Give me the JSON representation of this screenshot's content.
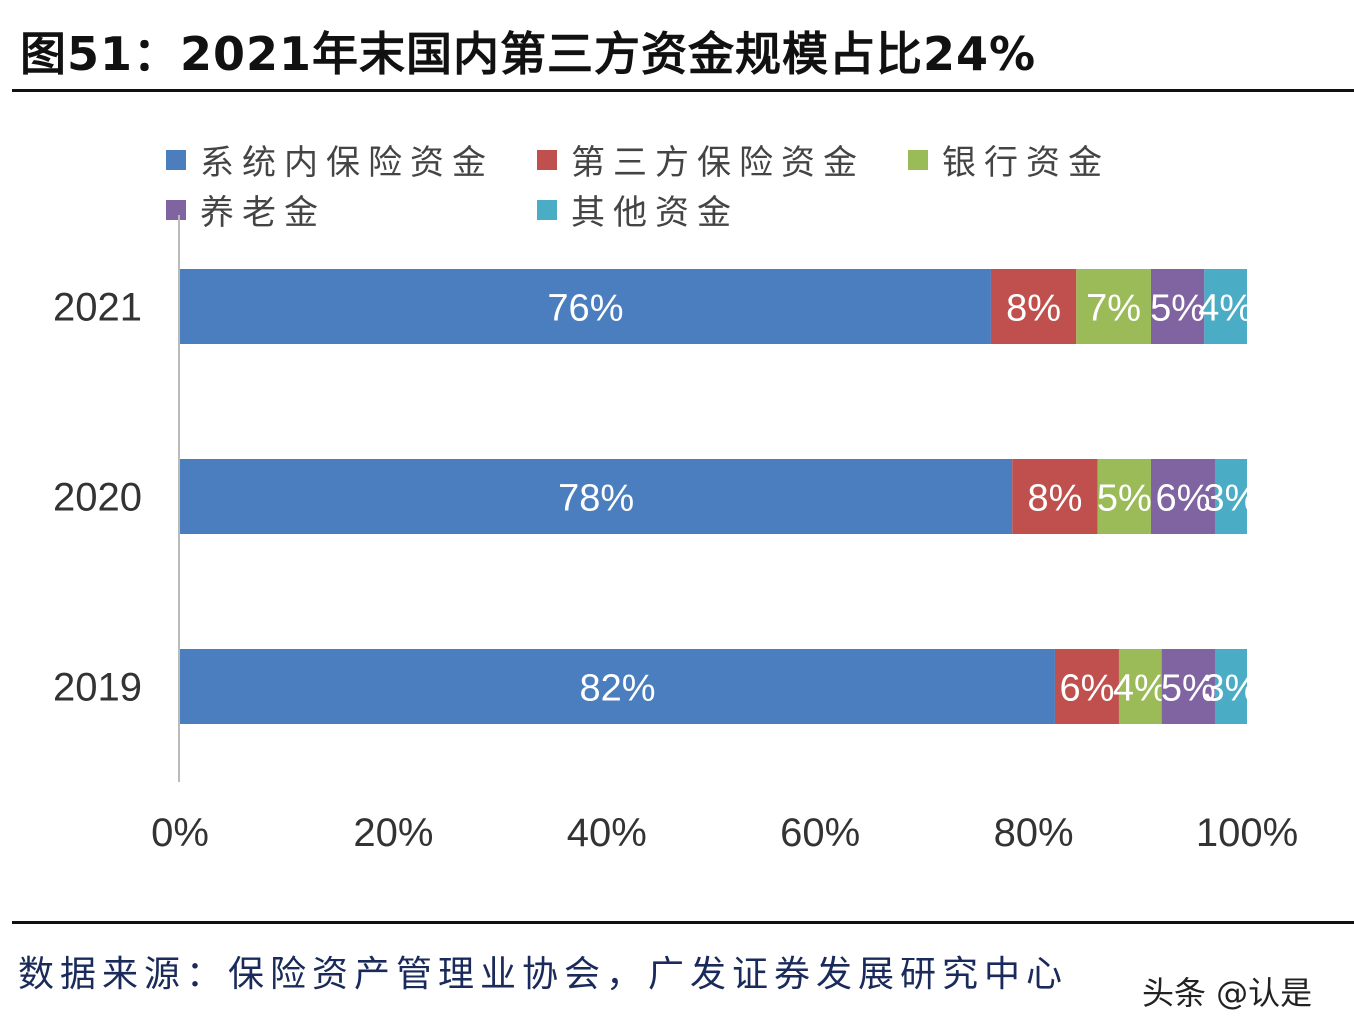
{
  "title": "图51：2021年末国内第三方资金规模占比24%",
  "source": "数据来源：保险资产管理业协会，广发证券发展研究中心",
  "watermark": "头条 @认是",
  "chart_data": {
    "type": "bar",
    "orientation": "horizontal",
    "stacked": "percent",
    "title": "",
    "xlabel": "",
    "ylabel": "",
    "categories": [
      "2021",
      "2020",
      "2019"
    ],
    "series": [
      {
        "name": "系统内保险资金",
        "color": "#4a7ebf",
        "values": [
          76,
          78,
          82
        ],
        "labels": [
          "76%",
          "78%",
          "82%"
        ]
      },
      {
        "name": "第三方保险资金",
        "color": "#c0504d",
        "values": [
          8,
          8,
          6
        ],
        "labels": [
          "8%",
          "8%",
          "6%"
        ]
      },
      {
        "name": "银行资金",
        "color": "#9bbb59",
        "values": [
          7,
          5,
          4
        ],
        "labels": [
          "7%",
          "5%",
          "4%"
        ]
      },
      {
        "name": "养老金",
        "color": "#8064a2",
        "values": [
          5,
          6,
          5
        ],
        "labels": [
          "5%",
          "6%",
          "5%"
        ]
      },
      {
        "name": "其他资金",
        "color": "#4bacc6",
        "values": [
          4,
          3,
          3
        ],
        "labels": [
          "4%",
          "3%",
          "3%"
        ]
      }
    ],
    "xlim": [
      0,
      100
    ],
    "xticks": [
      "0%",
      "20%",
      "40%",
      "60%",
      "80%",
      "100%"
    ],
    "grid": false,
    "legend_position": "top"
  }
}
